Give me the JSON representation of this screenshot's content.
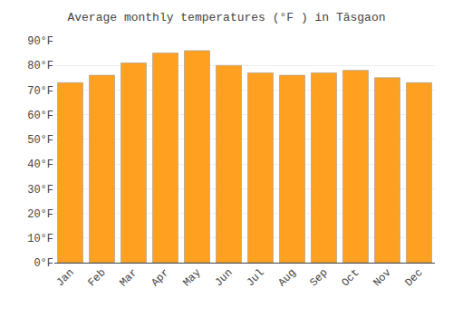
{
  "chart_data": {
    "type": "bar",
    "title": "Average monthly temperatures (°F ) in Tāsgaon",
    "categories": [
      "Jan",
      "Feb",
      "Mar",
      "Apr",
      "May",
      "Jun",
      "Jul",
      "Aug",
      "Sep",
      "Oct",
      "Nov",
      "Dec"
    ],
    "values": [
      73,
      76,
      81,
      85,
      86,
      80,
      77,
      76,
      77,
      78,
      75,
      73
    ],
    "color": "#FFA020",
    "ylim": [
      0,
      90
    ],
    "yticks": [
      {
        "value": 0,
        "label": "0°F"
      },
      {
        "value": 10,
        "label": "10°F"
      },
      {
        "value": 20,
        "label": "20°F"
      },
      {
        "value": 30,
        "label": "30°F"
      },
      {
        "value": 40,
        "label": "40°F"
      },
      {
        "value": 50,
        "label": "50°F"
      },
      {
        "value": 60,
        "label": "60°F"
      },
      {
        "value": 70,
        "label": "70°F"
      },
      {
        "value": 80,
        "label": "80°F"
      },
      {
        "value": 90,
        "label": "90°F"
      }
    ],
    "grid": true
  }
}
